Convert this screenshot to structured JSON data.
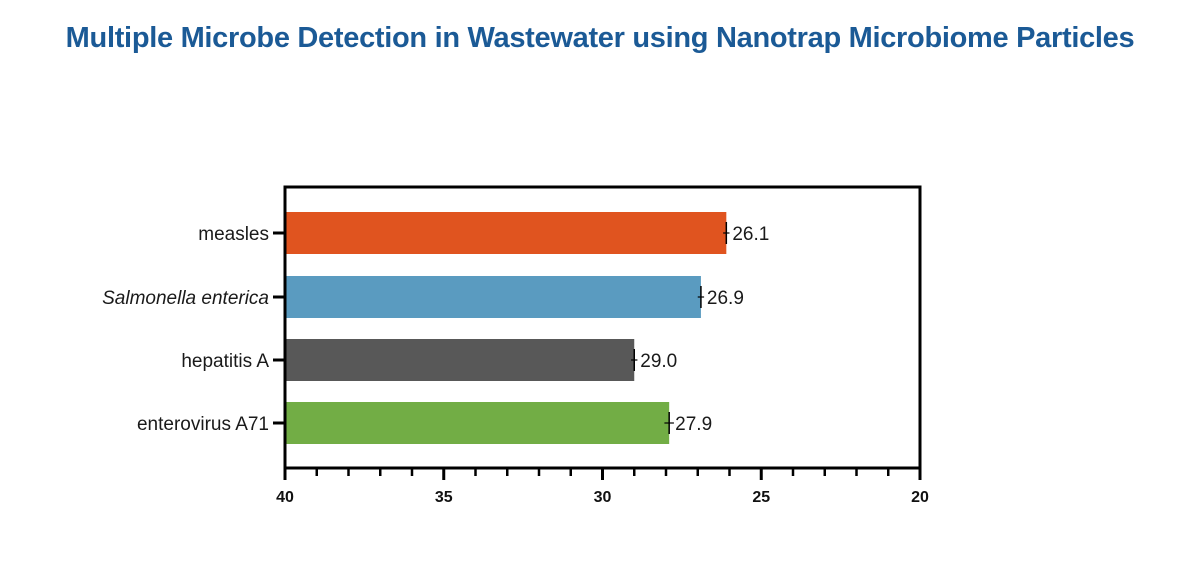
{
  "chart_data": {
    "type": "bar",
    "orientation": "horizontal",
    "title": "Multiple Microbe Detection in Wastewater using Nanotrap Microbiome Particles",
    "categories": [
      "measles",
      "Salmonella enterica",
      "hepatitis A",
      "enterovirus A71"
    ],
    "category_italic": [
      false,
      true,
      false,
      false
    ],
    "values": [
      26.1,
      26.9,
      29.0,
      27.9
    ],
    "value_labels": [
      "26.1",
      "26.9",
      "29.0",
      "27.9"
    ],
    "error": [
      0.1,
      0.1,
      0.1,
      0.15
    ],
    "colors": [
      "#e0541f",
      "#5a9bc0",
      "#585858",
      "#72ad45"
    ],
    "xlim": [
      40,
      20
    ],
    "xticks": [
      40,
      35,
      30,
      25,
      20
    ],
    "xtick_labels": [
      "40",
      "35",
      "30",
      "25",
      "20"
    ],
    "minor_tick_step": 1,
    "xlabel": "",
    "ylabel": "",
    "grid": false,
    "title_color": "#1b5a96"
  }
}
